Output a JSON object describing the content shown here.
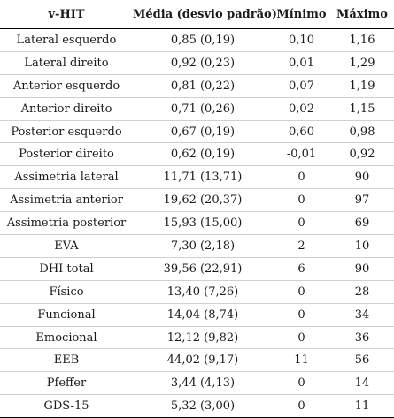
{
  "table": {
    "headers": [
      "v-HIT",
      "Média (desvio padrão)",
      "Mínimo",
      "Máximo"
    ],
    "rows": [
      [
        "Lateral esquerdo",
        "0,85 (0,19)",
        "0,10",
        "1,16"
      ],
      [
        "Lateral direito",
        "0,92 (0,23)",
        "0,01",
        "1,29"
      ],
      [
        "Anterior esquerdo",
        "0,81 (0,22)",
        "0,07",
        "1,19"
      ],
      [
        "Anterior direito",
        "0,71 (0,26)",
        "0,02",
        "1,15"
      ],
      [
        "Posterior esquerdo",
        "0,67 (0,19)",
        "0,60",
        "0,98"
      ],
      [
        "Posterior direito",
        "0,62 (0,19)",
        "-0,01",
        "0,92"
      ],
      [
        "Assimetria lateral",
        "11,71 (13,71)",
        "0",
        "90"
      ],
      [
        "Assimetria anterior",
        "19,62 (20,37)",
        "0",
        "97"
      ],
      [
        "Assimetria posterior",
        "15,93 (15,00)",
        "0",
        "69"
      ],
      [
        "EVA",
        "7,30 (2,18)",
        "2",
        "10"
      ],
      [
        "DHI total",
        "39,56 (22,91)",
        "6",
        "90"
      ],
      [
        "Físico",
        "13,40 (7,26)",
        "0",
        "28"
      ],
      [
        "Funcional",
        "14,04 (8,74)",
        "0",
        "34"
      ],
      [
        "Emocional",
        "12,12 (9,82)",
        "0",
        "36"
      ],
      [
        "EEB",
        "44,02 (9,17)",
        "11",
        "56"
      ],
      [
        "Pfeffer",
        "3,44 (4,13)",
        "0",
        "14"
      ],
      [
        "GDS-15",
        "5,32 (3,00)",
        "0",
        "11"
      ]
    ]
  }
}
